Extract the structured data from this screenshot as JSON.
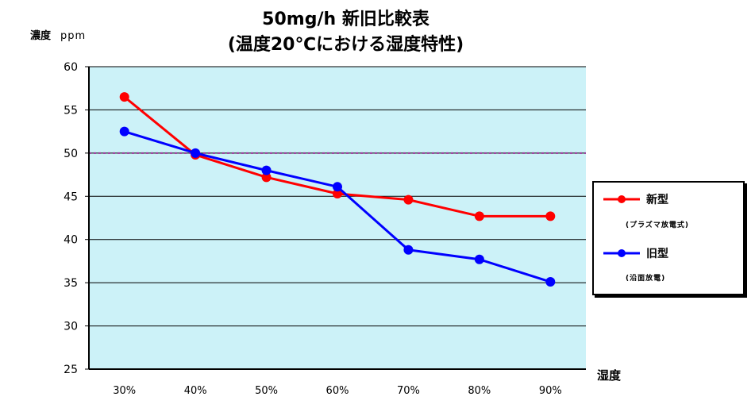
{
  "chart_data": {
    "type": "line",
    "title": "50mg/h 新旧比較表",
    "subtitle": "(温度20℃における湿度特性)",
    "ylabel": "濃度",
    "yunit": "ppm",
    "xlabel": "湿度",
    "categories": [
      "30%",
      "40%",
      "50%",
      "60%",
      "70%",
      "80%",
      "90%"
    ],
    "ylim": [
      25,
      60
    ],
    "yticks": [
      25,
      30,
      35,
      40,
      45,
      50,
      55,
      60
    ],
    "reference_line": 50,
    "grid": true,
    "legend_position": "right",
    "series": [
      {
        "name": "新型",
        "note": "(プラズマ放電式)",
        "color": "#ff0000",
        "values": [
          56.5,
          49.8,
          47.2,
          45.3,
          44.6,
          42.7,
          42.7
        ]
      },
      {
        "name": "旧型",
        "note": "(沿面放電)",
        "color": "#0000ff",
        "values": [
          52.5,
          50.0,
          48.0,
          46.1,
          38.8,
          37.7,
          35.1
        ]
      }
    ],
    "colors": {
      "plot_background": "#ccf2f8",
      "grid": "#000000",
      "reference": "#993399"
    }
  }
}
